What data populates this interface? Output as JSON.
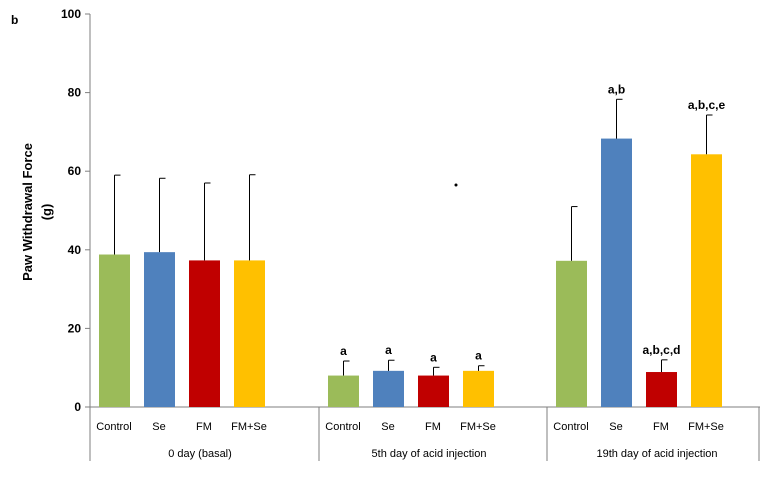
{
  "chart_data": {
    "type": "bar",
    "panel_label": "b",
    "ylabel_line1": "Paw Withdrawal Force",
    "ylabel_line2": "(g)",
    "ylim": [
      0,
      100
    ],
    "yticks": [
      "0",
      "20",
      "40",
      "60",
      "80",
      "100"
    ],
    "categories": [
      "Control",
      "Se",
      "FM",
      "FM+Se"
    ],
    "groups": [
      {
        "name": "0 day (basal)",
        "bars": [
          {
            "category": "Control",
            "value": 38.8,
            "error": 20.2,
            "label": "",
            "color": "#9bbb59"
          },
          {
            "category": "Se",
            "value": 39.4,
            "error": 18.8,
            "label": "",
            "color": "#4f81bd"
          },
          {
            "category": "FM",
            "value": 37.3,
            "error": 19.7,
            "label": "",
            "color": "#c00000"
          },
          {
            "category": "FM+Se",
            "value": 37.3,
            "error": 21.8,
            "label": "",
            "color": "#ffc000"
          }
        ]
      },
      {
        "name": "5th day of acid injection",
        "bars": [
          {
            "category": "Control",
            "value": 8.0,
            "error": 3.7,
            "label": "a",
            "color": "#9bbb59"
          },
          {
            "category": "Se",
            "value": 9.2,
            "error": 2.7,
            "label": "a",
            "color": "#4f81bd"
          },
          {
            "category": "FM",
            "value": 8.0,
            "error": 2.1,
            "label": "a",
            "color": "#c00000"
          },
          {
            "category": "FM+Se",
            "value": 9.2,
            "error": 1.3,
            "label": "a",
            "color": "#ffc000"
          }
        ]
      },
      {
        "name": "19th day of acid injection",
        "bars": [
          {
            "category": "Control",
            "value": 37.2,
            "error": 13.8,
            "label": "",
            "color": "#9bbb59"
          },
          {
            "category": "Se",
            "value": 68.3,
            "error": 10.0,
            "label": "a,b",
            "color": "#4f81bd"
          },
          {
            "category": "FM",
            "value": 8.9,
            "error": 3.1,
            "label": "a,b,c,d",
            "color": "#c00000"
          },
          {
            "category": "FM+Se",
            "value": 64.3,
            "error": 10.0,
            "label": "a,b,c,e",
            "color": "#ffc000"
          }
        ]
      }
    ],
    "grid": false,
    "legend": "none"
  }
}
